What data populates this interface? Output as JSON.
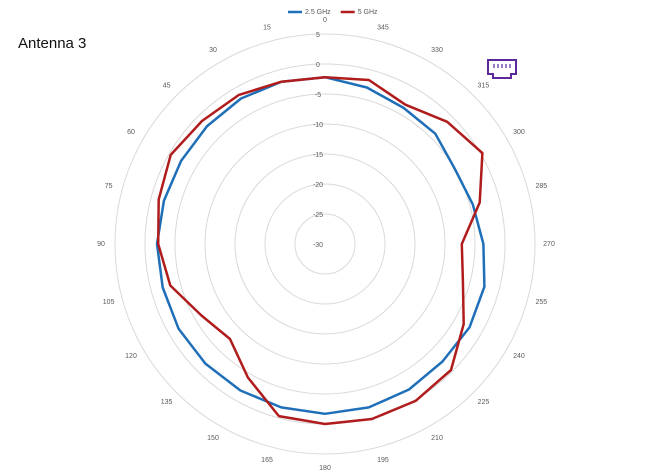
{
  "chart_data": {
    "type": "polar",
    "title": "Antenna 3",
    "theta": [
      0,
      15,
      30,
      45,
      60,
      75,
      90,
      105,
      120,
      135,
      150,
      165,
      180,
      195,
      210,
      225,
      240,
      255,
      270,
      285,
      300,
      315,
      330,
      345
    ],
    "series": [
      {
        "name": "2.5 GHz",
        "color": "#1f6fb8",
        "values": [
          -2.2,
          -2.0,
          -2.0,
          -2.2,
          -2.3,
          -2.2,
          -2.0,
          -2.0,
          -1.8,
          -1.8,
          -1.8,
          -1.8,
          -1.7,
          -1.8,
          -2.0,
          -2.3,
          -2.2,
          -2.5,
          -3.6,
          -4.5,
          -5.0,
          -4.0,
          -3.8,
          -3.0
        ]
      },
      {
        "name": "5 GHz",
        "color": "#b01c1c",
        "values": [
          -2.2,
          -2.0,
          -1.3,
          -1.0,
          -0.3,
          -1.3,
          -2.2,
          -3.3,
          -6.2,
          -7.6,
          -4.3,
          -0.3,
          0.0,
          0.2,
          0.2,
          -0.3,
          -3.3,
          -6.2,
          -7.2,
          -3.3,
          0.3,
          -1.2,
          -3.2,
          -1.7
        ]
      }
    ],
    "rlim": [
      -30,
      5
    ],
    "rticks": [
      5,
      0,
      -5,
      -10,
      -15,
      -20,
      -25,
      -30
    ],
    "thetaticks": [
      0,
      15,
      30,
      45,
      60,
      75,
      90,
      105,
      120,
      135,
      150,
      165,
      180,
      195,
      210,
      225,
      240,
      255,
      270,
      285,
      300,
      315,
      330,
      345
    ],
    "grid": true
  }
}
